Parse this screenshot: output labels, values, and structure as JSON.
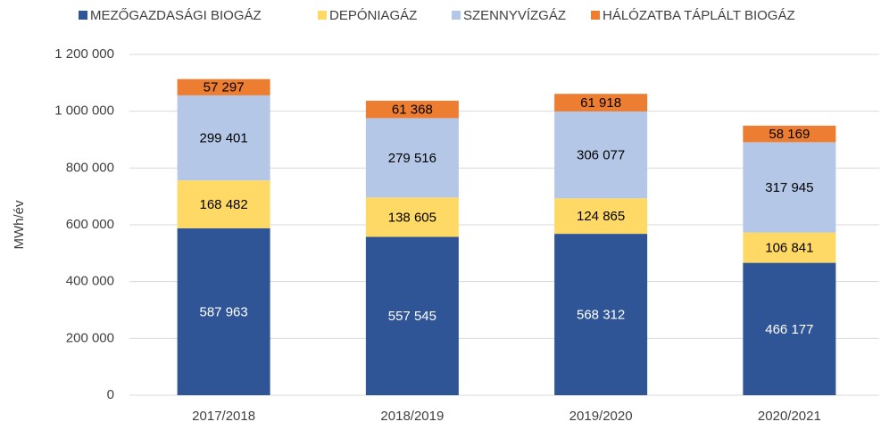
{
  "chart_data": {
    "type": "stacked_bar",
    "y_label": "MWh/év",
    "categories": [
      "2017/2018",
      "2018/2019",
      "2019/2020",
      "2020/2021"
    ],
    "series": [
      {
        "name": "MEZŐGAZDASÁGI BIOGÁZ",
        "color": "#2f5597",
        "values": [
          587963,
          557545,
          568312,
          466177
        ],
        "value_labels": [
          "587 963",
          "557 545",
          "568 312",
          "466 177"
        ]
      },
      {
        "name": "DEPÓNIAGÁZ",
        "color": "#ffd966",
        "values": [
          168482,
          138605,
          124865,
          106841
        ],
        "value_labels": [
          "168 482",
          "138 605",
          "124 865",
          "106 841"
        ]
      },
      {
        "name": "SZENNYVÍZGÁZ",
        "color": "#b4c7e7",
        "values": [
          299401,
          279516,
          306077,
          317945
        ],
        "value_labels": [
          "299 401",
          "279 516",
          "306 077",
          "317 945"
        ]
      },
      {
        "name": "HÁLÓZATBA TÁPLÁLT BIOGÁZ",
        "color": "#ed7d31",
        "values": [
          57297,
          61368,
          61918,
          58169
        ],
        "value_labels": [
          "57 297",
          "61 368",
          "61 918",
          "58 169"
        ]
      }
    ],
    "ylim": [
      0,
      1200000
    ],
    "yticks": [
      0,
      {
        "value": 200000,
        "label": "200 000"
      },
      {
        "value": 400000,
        "label": "400 000"
      },
      {
        "value": 600000,
        "label": "600 000"
      },
      {
        "value": 800000,
        "label": "800 000"
      },
      {
        "value": 1000000,
        "label": "1 000 000"
      },
      {
        "value": 1200000,
        "label": "1 200 000"
      }
    ],
    "grid": true,
    "legend": "top"
  }
}
